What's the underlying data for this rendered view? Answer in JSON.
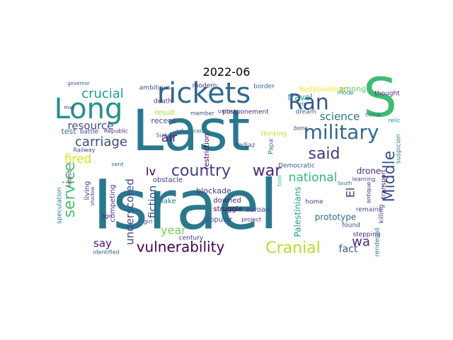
{
  "figure": {
    "title": "2022-06"
  },
  "words": [
    {
      "t": "Israel",
      "c": "#2a788e"
    },
    {
      "t": "Last",
      "c": "#2a788e"
    },
    {
      "t": "Long",
      "c": "#21918c"
    },
    {
      "t": "S",
      "c": "#3fbc73"
    },
    {
      "t": "rickets",
      "c": "#31688e"
    },
    {
      "t": "Ran",
      "c": "#3b528b"
    },
    {
      "t": "military",
      "c": "#31688e"
    },
    {
      "t": "country",
      "c": "#433e85"
    },
    {
      "t": "war",
      "c": "#482878"
    },
    {
      "t": "said",
      "c": "#443983"
    },
    {
      "t": "service",
      "c": "#4ac16d"
    },
    {
      "t": "Middle",
      "c": "#3b528b"
    },
    {
      "t": "Cranial",
      "c": "#b8de29"
    },
    {
      "t": "vulnerability",
      "c": "#440154"
    },
    {
      "t": "crucial",
      "c": "#1f9e89"
    },
    {
      "t": "carriage",
      "c": "#3e4989"
    },
    {
      "t": "resource",
      "c": "#3e4989"
    },
    {
      "t": "fired",
      "c": "#d8e219"
    },
    {
      "t": "science",
      "c": "#2c728e"
    },
    {
      "t": "national",
      "c": "#35b779"
    },
    {
      "t": "wa",
      "c": "#482878"
    },
    {
      "t": "El",
      "c": "#46337e"
    },
    {
      "t": "air",
      "c": "#481f70"
    },
    {
      "t": "Iv",
      "c": "#440154"
    },
    {
      "t": "underscored",
      "c": "#3e4989"
    },
    {
      "t": "fiction",
      "c": "#3b528b"
    },
    {
      "t": "year",
      "c": "#7ad151"
    },
    {
      "t": "say",
      "c": "#471063"
    },
    {
      "t": "fact",
      "c": "#3b528b"
    },
    {
      "t": "drone",
      "c": "#472d7b"
    },
    {
      "t": "prototype",
      "c": "#31688e"
    },
    {
      "t": "Palestinians",
      "c": "#1f9e89"
    },
    {
      "t": "Bodybuilding",
      "c": "#fde725"
    },
    {
      "t": "travel",
      "c": "#21918c"
    },
    {
      "t": "among",
      "c": "#5ec962"
    },
    {
      "t": "test",
      "c": "#2c728e"
    },
    {
      "t": "living",
      "c": "#433e85"
    },
    {
      "t": "competing",
      "c": "#46337e"
    },
    {
      "t": "popular",
      "c": "#3b528b"
    },
    {
      "t": "struggle",
      "c": "#440154"
    },
    {
      "t": "downed",
      "c": "#482878"
    },
    {
      "t": "blockade",
      "c": "#46337e"
    },
    {
      "t": "obstacle",
      "c": "#443983"
    },
    {
      "t": "recent",
      "c": "#3e4989"
    },
    {
      "t": "result",
      "c": "#a0da39"
    },
    {
      "t": "ambitious",
      "c": "#3e4989"
    },
    {
      "t": "modern",
      "c": "#472d7b"
    },
    {
      "t": "border",
      "c": "#31688e"
    },
    {
      "t": "make",
      "c": "#2a788e"
    },
    {
      "t": "abroad",
      "c": "#414487"
    },
    {
      "t": "restriction",
      "c": "#440154"
    },
    {
      "t": "Papa",
      "c": "#2a788e"
    },
    {
      "t": "Hedjaz",
      "c": "#3b528b"
    },
    {
      "t": "postponement",
      "c": "#482878"
    },
    {
      "t": "dream",
      "c": "#31688e"
    },
    {
      "t": "thinking",
      "c": "#c2df23"
    },
    {
      "t": "Democratic",
      "c": "#3b528b"
    },
    {
      "t": "home",
      "c": "#443983"
    },
    {
      "t": "remains",
      "c": "#3e4989"
    },
    {
      "t": "found",
      "c": "#3b528b"
    },
    {
      "t": "stepping",
      "c": "#482878"
    },
    {
      "t": "killing",
      "c": "#46337e"
    },
    {
      "t": "transport",
      "c": "#471063"
    },
    {
      "t": "antique",
      "c": "#482878"
    },
    {
      "t": "learning",
      "c": "#3e4989"
    },
    {
      "t": "suspicion",
      "c": "#2a788e"
    },
    {
      "t": "thought",
      "c": "#482878"
    },
    {
      "t": "rendered",
      "c": "#2a788e"
    },
    {
      "t": "relic",
      "c": "#21918c"
    },
    {
      "t": "come",
      "c": "#31688e"
    },
    {
      "t": "mode",
      "c": "#2a788e"
    },
    {
      "t": "trip",
      "c": "#2a788e"
    },
    {
      "t": "bone",
      "c": "#443983"
    },
    {
      "t": "death",
      "c": "#472d7b"
    },
    {
      "t": "unite",
      "c": "#3e4989"
    },
    {
      "t": "member",
      "c": "#3b528b"
    },
    {
      "t": "advanced",
      "c": "#31688e"
    },
    {
      "t": "Sudan",
      "c": "#3b528b"
    },
    {
      "t": "battle",
      "c": "#433e85"
    },
    {
      "t": "Republic",
      "c": "#46337e"
    },
    {
      "t": "Railway",
      "c": "#3e4989"
    },
    {
      "t": "latest",
      "c": "#482878"
    },
    {
      "t": "shadow",
      "c": "#3e4989"
    },
    {
      "t": "speculation",
      "c": "#2a788e"
    },
    {
      "t": "ago",
      "c": "#482878"
    },
    {
      "t": "girl",
      "c": "#3e4989"
    },
    {
      "t": "identified",
      "c": "#31688e"
    },
    {
      "t": "century",
      "c": "#46337e"
    },
    {
      "t": "project",
      "c": "#472d7b"
    },
    {
      "t": "tool",
      "c": "#35b779"
    },
    {
      "t": "sent",
      "c": "#2a788e"
    },
    {
      "t": "may",
      "c": "#433e85"
    },
    {
      "t": "governor",
      "c": "#3e4989"
    },
    {
      "t": "South",
      "c": "#31688e"
    }
  ]
}
